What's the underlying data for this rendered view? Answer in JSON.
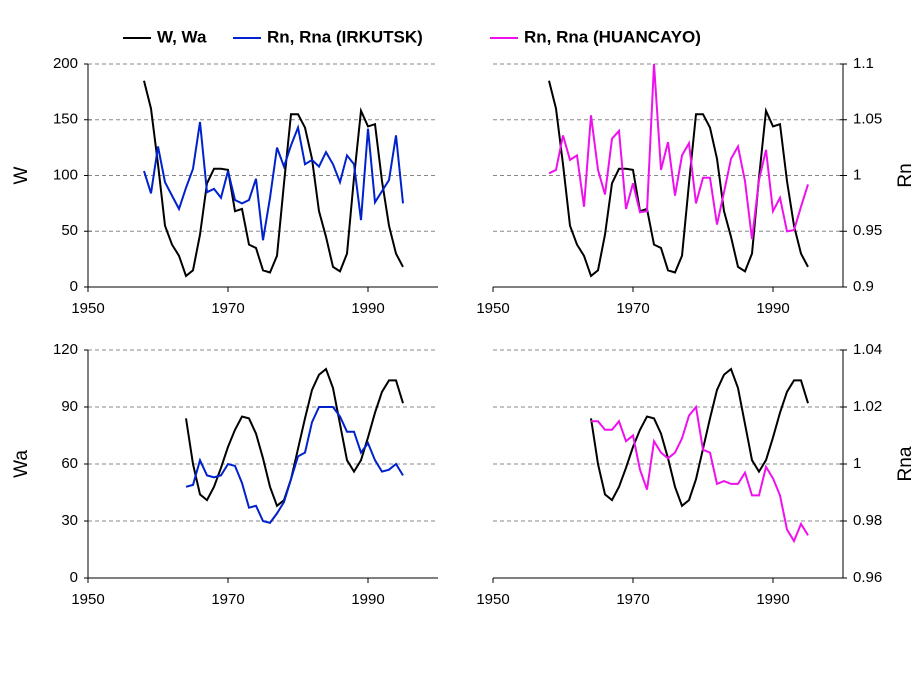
{
  "chart_data": [
    {
      "type": "line",
      "ylabel": "W",
      "x": [
        1958,
        1959,
        1960,
        1961,
        1962,
        1963,
        1964,
        1965,
        1966,
        1967,
        1968,
        1969,
        1970,
        1971,
        1972,
        1973,
        1974,
        1975,
        1976,
        1977,
        1978,
        1979,
        1980,
        1981,
        1982,
        1983,
        1984,
        1985,
        1986,
        1987,
        1988,
        1989,
        1990,
        1991,
        1992,
        1993,
        1994,
        1995
      ],
      "xlim": [
        1950,
        2000
      ],
      "xticks": [
        1950,
        1970,
        1990
      ],
      "ylim": [
        0,
        200
      ],
      "yticks": [
        0,
        50,
        100,
        150,
        200
      ],
      "grid": true,
      "series": [
        {
          "name": "W, Wa",
          "color": "#000000",
          "values": [
            185,
            160,
            110,
            55,
            38,
            28,
            10,
            15,
            47,
            93,
            106,
            106,
            105,
            68,
            70,
            38,
            35,
            15,
            13,
            28,
            93,
            155,
            155,
            143,
            115,
            68,
            45,
            18,
            14,
            30,
            98,
            158,
            144,
            146,
            95,
            55,
            30,
            18
          ]
        },
        {
          "name": "Rn, Rna (IRKUTSK)",
          "color": "#0022cc",
          "values": [
            104,
            84,
            126,
            94,
            82,
            70,
            89,
            106,
            148,
            85,
            88,
            80,
            104,
            78,
            75,
            78,
            97,
            42,
            80,
            125,
            108,
            127,
            143,
            110,
            114,
            108,
            121,
            110,
            94,
            118,
            110,
            60,
            142,
            76,
            86,
            96,
            136,
            75
          ]
        }
      ]
    },
    {
      "type": "line",
      "y2label": "Rn",
      "x": [
        1958,
        1959,
        1960,
        1961,
        1962,
        1963,
        1964,
        1965,
        1966,
        1967,
        1968,
        1969,
        1970,
        1971,
        1972,
        1973,
        1974,
        1975,
        1976,
        1977,
        1978,
        1979,
        1980,
        1981,
        1982,
        1983,
        1984,
        1985,
        1986,
        1987,
        1988,
        1989,
        1990,
        1991,
        1992,
        1993,
        1994,
        1995
      ],
      "xlim": [
        1950,
        2000
      ],
      "xticks": [
        1950,
        1970,
        1990
      ],
      "ylim": [
        0,
        200
      ],
      "y2lim": [
        0.9,
        1.1
      ],
      "y2ticks": [
        0.9,
        0.95,
        1,
        1.05,
        1.1
      ],
      "grid": true,
      "series": [
        {
          "color": "#000000",
          "values": [
            185,
            160,
            110,
            55,
            38,
            28,
            10,
            15,
            47,
            93,
            106,
            106,
            105,
            68,
            70,
            38,
            35,
            15,
            13,
            28,
            93,
            155,
            155,
            143,
            115,
            68,
            45,
            18,
            14,
            30,
            98,
            158,
            144,
            146,
            95,
            55,
            30,
            18
          ]
        },
        {
          "name": "Rn, Rna (HUANCAYO)",
          "color": "#ee11ee",
          "axis": "y2",
          "values": [
            1.002,
            1.005,
            1.036,
            1.014,
            1.018,
            0.972,
            1.054,
            1.005,
            0.983,
            1.033,
            1.04,
            0.97,
            0.993,
            0.967,
            0.968,
            1.1,
            1.005,
            1.03,
            0.982,
            1.018,
            1.029,
            0.975,
            0.998,
            0.998,
            0.956,
            0.985,
            1.015,
            1.026,
            0.995,
            0.943,
            0.996,
            1.023,
            0.968,
            0.98,
            0.95,
            0.951,
            0.972,
            0.992
          ]
        }
      ]
    },
    {
      "type": "line",
      "ylabel": "Wa",
      "x": [
        1964,
        1965,
        1966,
        1967,
        1968,
        1969,
        1970,
        1971,
        1972,
        1973,
        1974,
        1975,
        1976,
        1977,
        1978,
        1979,
        1980,
        1981,
        1982,
        1983,
        1984,
        1985,
        1986,
        1987,
        1988,
        1989,
        1990,
        1991,
        1992,
        1993,
        1994,
        1995
      ],
      "xlim": [
        1950,
        2000
      ],
      "xticks": [
        1950,
        1970,
        1990
      ],
      "ylim": [
        0,
        120
      ],
      "yticks": [
        0,
        30,
        60,
        90,
        120
      ],
      "grid": true,
      "series": [
        {
          "color": "#000000",
          "values": [
            84,
            60,
            44,
            41,
            48,
            58,
            69,
            78,
            85,
            84,
            76,
            63,
            48,
            38,
            41,
            52,
            68,
            84,
            99,
            107,
            110,
            100,
            81,
            62,
            56,
            62,
            74,
            87,
            98,
            104,
            104,
            92
          ]
        },
        {
          "color": "#0022cc",
          "values": [
            48,
            49,
            62,
            54,
            53,
            54,
            60,
            59,
            50,
            37,
            38,
            30,
            29,
            34,
            40,
            52,
            64,
            66,
            82,
            90,
            90,
            90,
            85,
            77,
            77,
            66,
            71,
            62,
            56,
            57,
            60,
            54
          ]
        }
      ]
    },
    {
      "type": "line",
      "y2label": "Rna",
      "x": [
        1964,
        1965,
        1966,
        1967,
        1968,
        1969,
        1970,
        1971,
        1972,
        1973,
        1974,
        1975,
        1976,
        1977,
        1978,
        1979,
        1980,
        1981,
        1982,
        1983,
        1984,
        1985,
        1986,
        1987,
        1988,
        1989,
        1990,
        1991,
        1992,
        1993,
        1994,
        1995
      ],
      "xlim": [
        1950,
        2000
      ],
      "xticks": [
        1950,
        1970,
        1990
      ],
      "ylim": [
        0,
        120
      ],
      "y2lim": [
        0.96,
        1.04
      ],
      "y2ticks": [
        0.96,
        0.98,
        1,
        1.02,
        1.04
      ],
      "grid": true,
      "series": [
        {
          "color": "#000000",
          "values": [
            84,
            60,
            44,
            41,
            48,
            58,
            69,
            78,
            85,
            84,
            76,
            63,
            48,
            38,
            41,
            52,
            68,
            84,
            99,
            107,
            110,
            100,
            81,
            62,
            56,
            62,
            74,
            87,
            98,
            104,
            104,
            92
          ]
        },
        {
          "color": "#ee11ee",
          "axis": "y2",
          "values": [
            1.015,
            1.015,
            1.012,
            1.012,
            1.015,
            1.008,
            1.01,
            0.998,
            0.991,
            1.008,
            1.004,
            1.002,
            1.004,
            1.009,
            1.017,
            1.02,
            1.005,
            1.004,
            0.993,
            0.994,
            0.993,
            0.993,
            0.997,
            0.989,
            0.989,
            0.999,
            0.995,
            0.989,
            0.977,
            0.973,
            0.979,
            0.975
          ]
        }
      ]
    }
  ]
}
